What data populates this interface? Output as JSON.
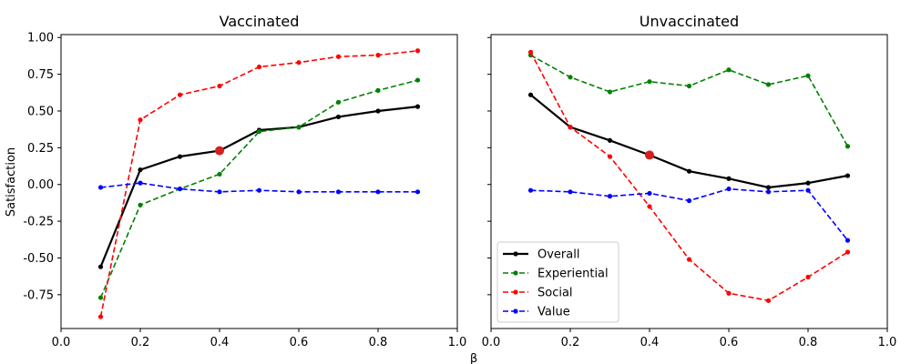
{
  "figure": {
    "shared_xlabel": "β",
    "shared_ylabel": "Satisfaction"
  },
  "chart_data": [
    {
      "type": "line",
      "title": "Vaccinated",
      "xlabel": "β",
      "ylabel": "Satisfaction",
      "xlim": [
        0.0,
        1.0
      ],
      "ylim": [
        -0.98,
        1.02
      ],
      "xticks": [
        "0.0",
        "0.2",
        "0.4",
        "0.6",
        "0.8",
        "1.0"
      ],
      "yticks": [
        "-0.75",
        "-0.50",
        "-0.25",
        "0.00",
        "0.25",
        "0.50",
        "0.75",
        "1.00"
      ],
      "x": [
        0.1,
        0.2,
        0.3,
        0.4,
        0.5,
        0.6,
        0.7,
        0.8,
        0.9
      ],
      "series": [
        {
          "name": "Overall",
          "color": "#000000",
          "dash": "solid",
          "values": [
            -0.56,
            0.1,
            0.19,
            0.23,
            0.37,
            0.39,
            0.46,
            0.5,
            0.53
          ]
        },
        {
          "name": "Experiential",
          "color": "#008000",
          "dash": "dashed",
          "values": [
            -0.77,
            -0.14,
            -0.03,
            0.07,
            0.36,
            0.39,
            0.56,
            0.64,
            0.71
          ]
        },
        {
          "name": "Social",
          "color": "#ff0000",
          "dash": "dashed",
          "values": [
            -0.9,
            0.44,
            0.61,
            0.67,
            0.8,
            0.83,
            0.87,
            0.88,
            0.91
          ]
        },
        {
          "name": "Value",
          "color": "#0000ff",
          "dash": "dashed",
          "values": [
            -0.02,
            0.01,
            -0.03,
            -0.05,
            -0.04,
            -0.05,
            -0.05,
            -0.05,
            -0.05
          ]
        }
      ],
      "highlight": {
        "x": 0.4,
        "y": 0.23,
        "color": "#d62020"
      }
    },
    {
      "type": "line",
      "title": "Unvaccinated",
      "xlabel": "β",
      "ylabel": "Satisfaction",
      "xlim": [
        0.0,
        1.0
      ],
      "ylim": [
        -0.98,
        1.02
      ],
      "xticks": [
        "0.0",
        "0.2",
        "0.4",
        "0.6",
        "0.8",
        "1.0"
      ],
      "yticks": [],
      "x": [
        0.1,
        0.2,
        0.3,
        0.4,
        0.5,
        0.6,
        0.7,
        0.8,
        0.9
      ],
      "series": [
        {
          "name": "Overall",
          "color": "#000000",
          "dash": "solid",
          "values": [
            0.61,
            0.39,
            0.3,
            0.2,
            0.09,
            0.04,
            -0.02,
            0.01,
            0.06
          ]
        },
        {
          "name": "Experiential",
          "color": "#008000",
          "dash": "dashed",
          "values": [
            0.88,
            0.73,
            0.63,
            0.7,
            0.67,
            0.78,
            0.68,
            0.74,
            0.26
          ]
        },
        {
          "name": "Social",
          "color": "#ff0000",
          "dash": "dashed",
          "values": [
            0.9,
            0.39,
            0.19,
            -0.15,
            -0.51,
            -0.74,
            -0.79,
            -0.63,
            -0.46
          ]
        },
        {
          "name": "Value",
          "color": "#0000ff",
          "dash": "dashed",
          "values": [
            -0.04,
            -0.05,
            -0.08,
            -0.06,
            -0.11,
            -0.03,
            -0.05,
            -0.04,
            -0.38
          ]
        }
      ],
      "highlight": {
        "x": 0.4,
        "y": 0.2,
        "color": "#d62020"
      },
      "legend": {
        "placement": "lower-left",
        "entries": [
          "Overall",
          "Experiential",
          "Social",
          "Value"
        ]
      }
    }
  ]
}
